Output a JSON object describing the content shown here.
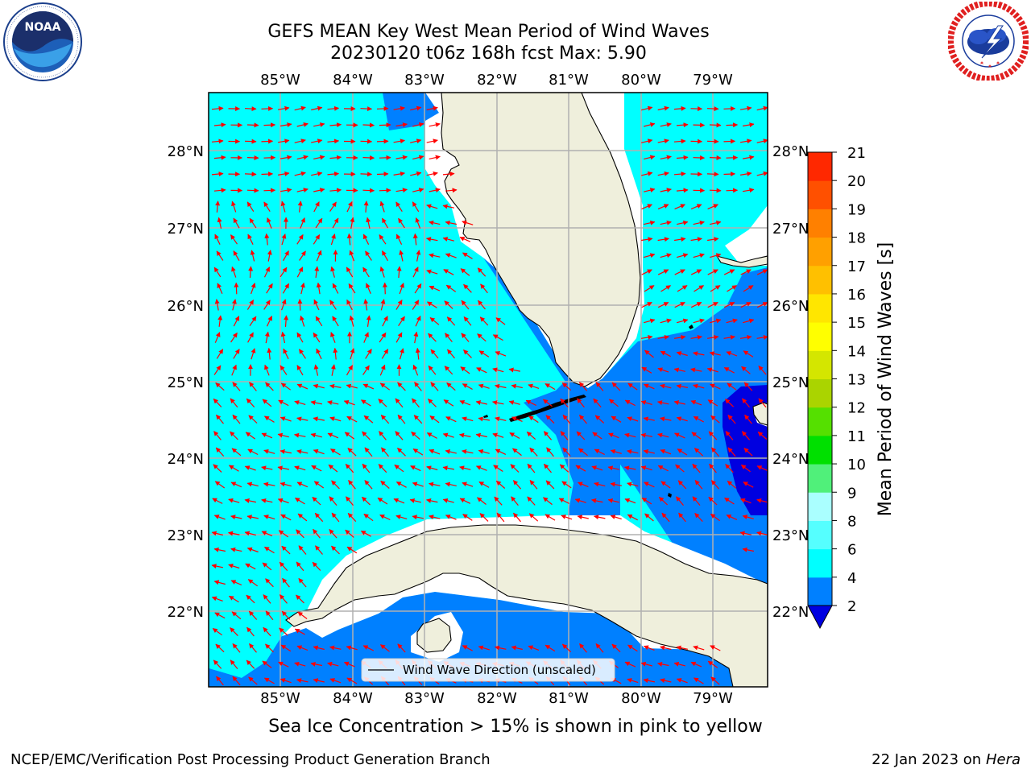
{
  "title": {
    "line1": "GEFS MEAN Key West Mean Period of Wind Waves",
    "line2": "20230120 t06z 168h fcst   Max: 5.90"
  },
  "logos": {
    "left": {
      "text": "NOAA",
      "ring_text": "NATIONAL OCEANIC AND ATMOSPHERIC ADMINISTRATION · U.S. DEPARTMENT OF COMMERCE"
    },
    "right": {
      "ring_text": "NATIONAL WEATHER SERVICE"
    }
  },
  "map": {
    "lon_labels": [
      "85°W",
      "84°W",
      "83°W",
      "82°W",
      "81°W",
      "80°W",
      "79°W"
    ],
    "lat_labels": [
      "28°N",
      "27°N",
      "26°N",
      "25°N",
      "24°N",
      "23°N",
      "22°N"
    ],
    "legend": "Wind Wave Direction (unscaled)",
    "colors": {
      "land": "#efefdc",
      "c2_4": "#0080ff",
      "c4_6": "#00ffff",
      "below2": "#0000e0",
      "arrow": "#ff0000",
      "grid": "#b0b0b0"
    }
  },
  "colorbar": {
    "label": "Mean Period of Wind Waves [s]",
    "ticks": [
      "2",
      "4",
      "6",
      "8",
      "9",
      "10",
      "11",
      "12",
      "13",
      "14",
      "15",
      "16",
      "17",
      "18",
      "19",
      "20",
      "21"
    ],
    "colors": [
      "#0080ff",
      "#00ffff",
      "#55ffff",
      "#aaffff",
      "#50f07a",
      "#00e000",
      "#55e000",
      "#aad400",
      "#d4e600",
      "#ffff00",
      "#ffe600",
      "#ffc000",
      "#ffa000",
      "#ff8000",
      "#ff5000",
      "#ff2800",
      "#ff0000"
    ],
    "extend_color": "#0000e0"
  },
  "notes": {
    "seaice": "Sea Ice Concentration > 15% is shown in pink to yellow",
    "footer_left": "NCEP/EMC/Verification Post Processing Product Generation Branch",
    "footer_date": "22 Jan 2023 on ",
    "footer_host": "Hera"
  }
}
